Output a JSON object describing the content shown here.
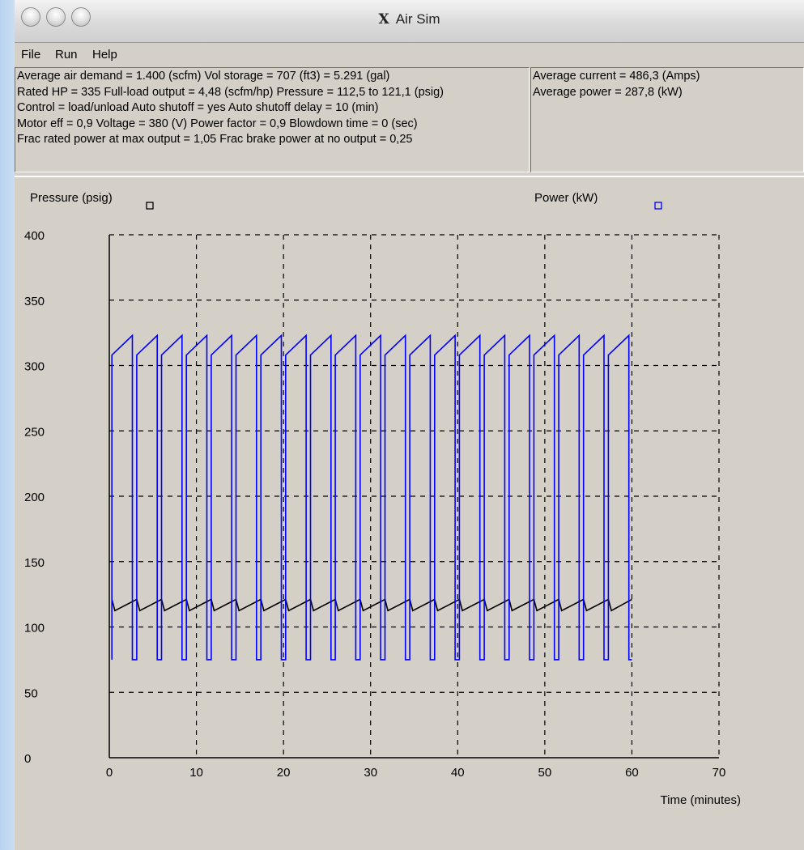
{
  "window": {
    "title": "Air Sim",
    "app_icon": "x11-icon",
    "controls": [
      "close",
      "minimize",
      "zoom"
    ]
  },
  "menu": {
    "items": [
      "File",
      "Run",
      "Help"
    ]
  },
  "params": {
    "lines": [
      "Average air demand = 1.400 (scfm)   Vol storage = 707 (ft3) = 5.291 (gal)",
      "Rated HP =  335   Full-load output = 4,48 (scfm/hp)   Pressure = 112,5  to  121,1 (psig)",
      "Control = load/unload   Auto shutoff = yes   Auto shutoff delay = 10  (min)",
      "Motor eff =  0,9   Voltage =  380  (V)   Power factor =  0,9   Blowdown time = 0  (sec)",
      "Frac rated power at max output = 1,05    Frac brake power at no output = 0,25"
    ]
  },
  "summary": {
    "lines": [
      "Average current = 486,3 (Amps)",
      "Average power = 287,8 (kW)"
    ]
  },
  "chart_data": {
    "type": "line",
    "xlabel": "Time (minutes)",
    "xlim": [
      0,
      70
    ],
    "ylim": [
      0,
      400
    ],
    "x_ticks": [
      0,
      10,
      20,
      30,
      40,
      50,
      60,
      70
    ],
    "y_ticks": [
      0,
      50,
      100,
      150,
      200,
      250,
      300,
      350,
      400
    ],
    "grid": true,
    "legend_placement": "top",
    "series": [
      {
        "name": "Pressure (psig)",
        "color": "#000000",
        "pattern": {
          "period_min": 2.85,
          "x_start": 0.3,
          "x_end": 60,
          "min": 112.5,
          "max": 121.1
        }
      },
      {
        "name": "Power (kW)",
        "color": "#0000ff",
        "pattern": {
          "period_min": 2.85,
          "x_start": 0.3,
          "x_end": 60,
          "load_start": 308,
          "load_end": 323,
          "unload": 75,
          "unload_duration_min": 0.5
        }
      }
    ]
  }
}
